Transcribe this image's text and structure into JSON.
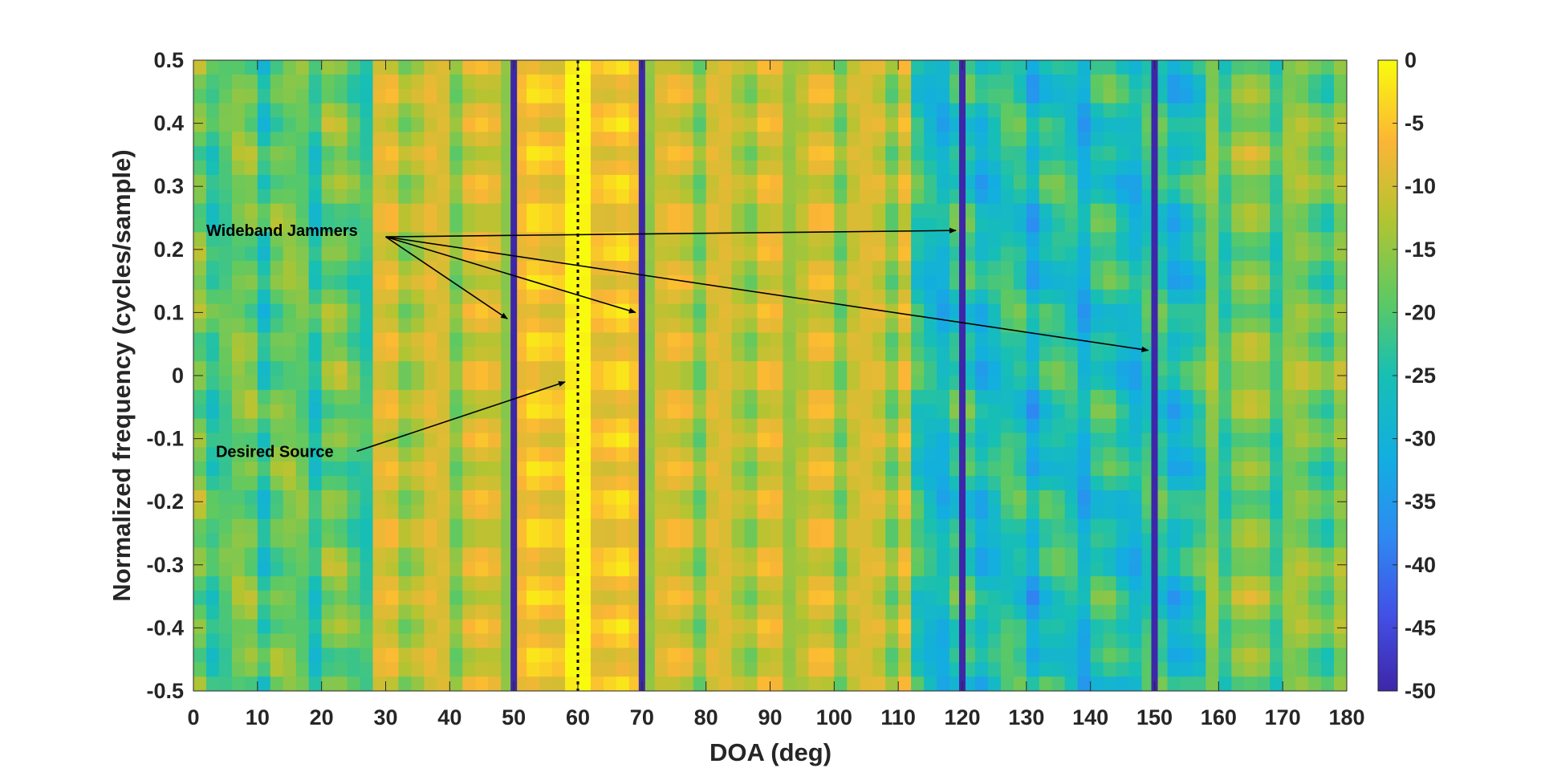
{
  "chart_data": {
    "type": "heatmap",
    "title": "",
    "xlabel": "DOA (deg)",
    "ylabel": "Normalized frequency (cycles/sample)",
    "xlim": [
      0,
      180
    ],
    "ylim": [
      -0.5,
      0.5
    ],
    "xticks": [
      0,
      10,
      20,
      30,
      40,
      50,
      60,
      70,
      80,
      90,
      100,
      110,
      120,
      130,
      140,
      150,
      160,
      170,
      180
    ],
    "xtick_labels": [
      "0",
      "10",
      "20",
      "30",
      "40",
      "50",
      "60",
      "70",
      "80",
      "90",
      "100",
      "110",
      "120",
      "130",
      "140",
      "150",
      "160",
      "170",
      "180"
    ],
    "yticks": [
      0.5,
      0.4,
      0.3,
      0.2,
      0.1,
      0,
      -0.1,
      -0.2,
      -0.3,
      -0.4,
      -0.5
    ],
    "ytick_labels": [
      "0.5",
      "0.4",
      "0.3",
      "0.2",
      "0.1",
      "0",
      "-0.1",
      "-0.2",
      "-0.3",
      "-0.4",
      "-0.5"
    ],
    "colorbar": {
      "range": [
        -50,
        0
      ],
      "ticks": [
        0,
        -5,
        -10,
        -15,
        -20,
        -25,
        -30,
        -35,
        -40,
        -45,
        -50
      ],
      "tick_labels": [
        "0",
        "-5",
        "-10",
        "-15",
        "-20",
        "-25",
        "-30",
        "-35",
        "-40",
        "-45",
        "-50"
      ],
      "colormap": "parula"
    },
    "desired_source_doa": 60,
    "jammer_doas": [
      50,
      70,
      120,
      150
    ],
    "annotations": [
      {
        "text": "Wideband Jammers",
        "text_at": [
          2,
          0.23
        ],
        "arrow_from": [
          30,
          0.22
        ],
        "arrow_targets": [
          [
            49,
            0.09
          ],
          [
            69,
            0.1
          ],
          [
            119,
            0.23
          ],
          [
            149,
            0.04
          ]
        ]
      },
      {
        "text": "Desired Source",
        "text_at": [
          3.5,
          -0.12
        ],
        "arrow_from": [
          25.5,
          -0.12
        ],
        "arrow_targets": [
          [
            58,
            -0.01
          ]
        ]
      }
    ]
  }
}
